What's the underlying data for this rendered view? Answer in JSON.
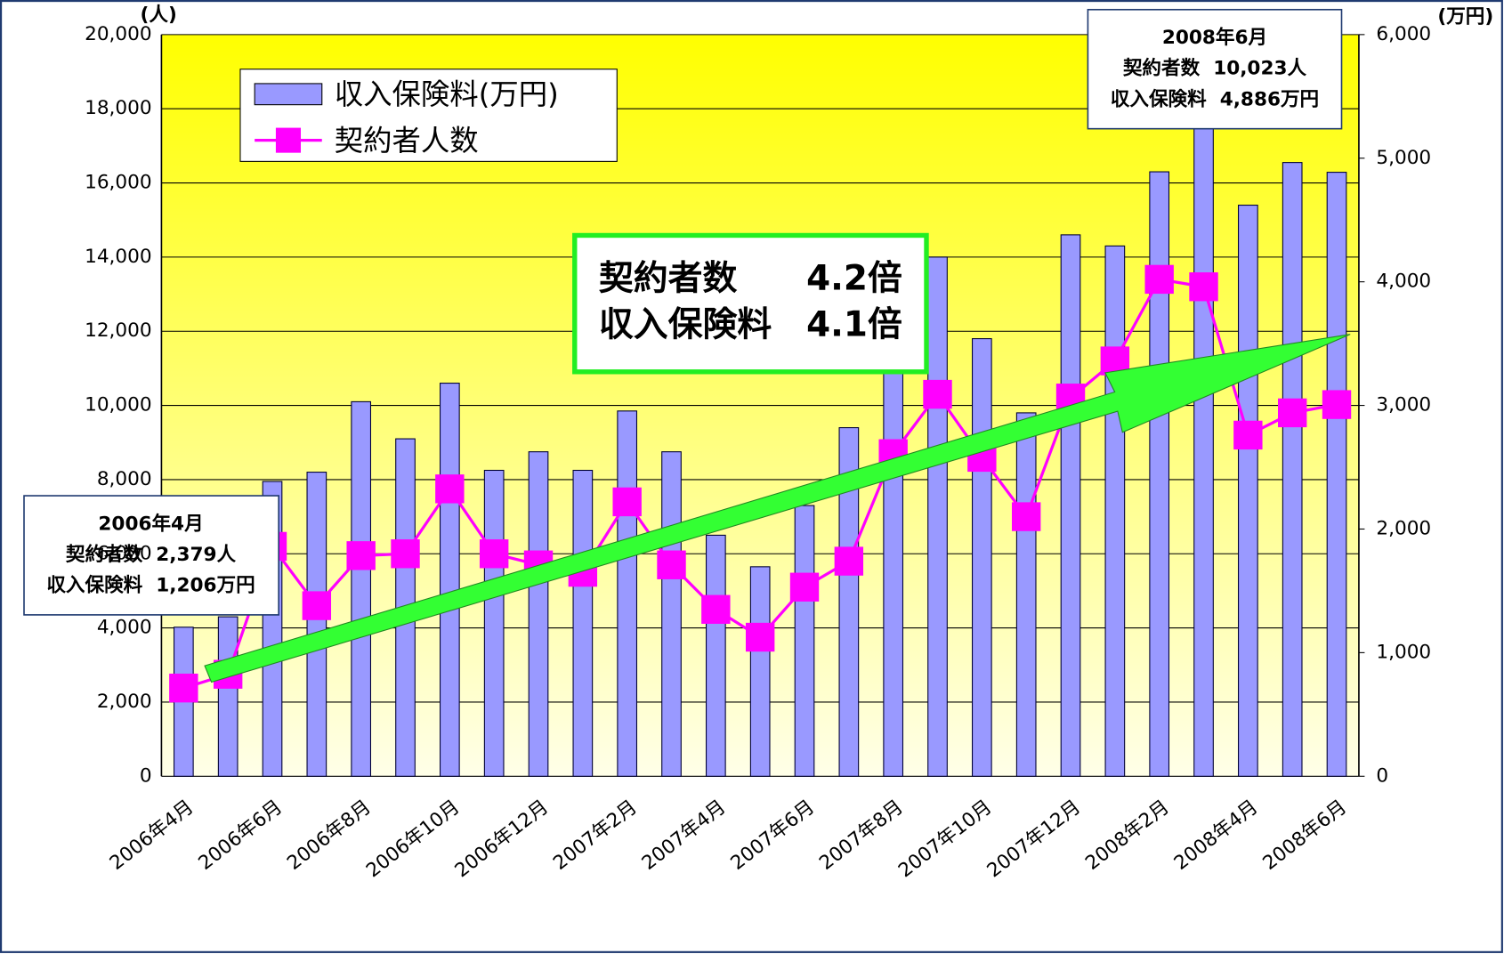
{
  "chart_data": {
    "type": "bar-line",
    "categories": [
      "2006年4月",
      null,
      "2006年6月",
      null,
      "2006年8月",
      null,
      "2006年10月",
      null,
      "2006年12月",
      null,
      "2007年2月",
      null,
      "2007年4月",
      null,
      "2007年6月",
      null,
      "2007年8月",
      null,
      "2007年10月",
      null,
      "2007年12月",
      null,
      "2008年2月",
      null,
      "2008年4月",
      null,
      "2008年6月"
    ],
    "series": [
      {
        "name": "収入保険料(万円)",
        "type": "bar",
        "axis": "y2",
        "color": "#9999ff",
        "values": [
          1206,
          1290,
          2385,
          2460,
          3030,
          2730,
          3180,
          2475,
          2625,
          2475,
          2955,
          2625,
          1950,
          1695,
          2190,
          2820,
          3390,
          4200,
          3540,
          2940,
          4380,
          4290,
          4890,
          5500,
          4620,
          4965,
          4886
        ]
      },
      {
        "name": "契約者人数",
        "type": "line",
        "axis": "y",
        "color": "#ff00ff",
        "values": [
          2379,
          2750,
          6200,
          4600,
          5950,
          6000,
          7750,
          6000,
          5700,
          5500,
          7400,
          5700,
          4500,
          3750,
          5100,
          5800,
          8700,
          10300,
          8600,
          7000,
          10200,
          11200,
          13400,
          13200,
          9200,
          9800,
          10023
        ]
      }
    ],
    "ylabel": "(人)",
    "y2label": "(万円)",
    "ylim": [
      0,
      20000
    ],
    "yticks": [
      0,
      {
        "value": 2000,
        "label": "2,000"
      },
      {
        "value": 4000,
        "label": "4,000"
      },
      {
        "value": 6000,
        "label": "6,000"
      },
      {
        "value": 8000,
        "label": "8,000"
      },
      {
        "value": 10000,
        "label": "10,000"
      },
      {
        "value": 12000,
        "label": "12,000"
      },
      {
        "value": 14000,
        "label": "14,000"
      },
      {
        "value": 16000,
        "label": "16,000"
      },
      {
        "value": 18000,
        "label": "18,000"
      },
      {
        "value": 20000,
        "label": "20,000"
      }
    ],
    "y2lim": [
      0,
      6000
    ],
    "y2ticks": [
      0,
      {
        "value": 1000,
        "label": "1,000"
      },
      {
        "value": 2000,
        "label": "2,000"
      },
      {
        "value": 3000,
        "label": "3,000"
      },
      {
        "value": 4000,
        "label": "4,000"
      },
      {
        "value": 5000,
        "label": "5,000"
      },
      {
        "value": 6000,
        "label": "6,000"
      }
    ],
    "grid": true,
    "legend": "upper left",
    "annotations": [
      {
        "lines": [
          "2006年4月",
          "契約者数  2,379人",
          "収入保険料  1,206万円"
        ]
      },
      {
        "lines": [
          "2008年6月",
          "契約者数  10,023人",
          "収入保険料  4,886万円"
        ]
      },
      {
        "lines": [
          "契約者数　　4.2倍",
          "収入保険料　4.1倍"
        ]
      }
    ]
  }
}
